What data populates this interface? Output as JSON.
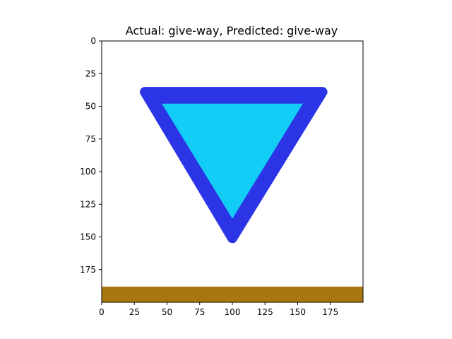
{
  "chart_data": {
    "type": "image",
    "title": "Actual: give-way, Predicted: give-way",
    "xlim": [
      0,
      200
    ],
    "ylim": [
      200,
      0
    ],
    "xticks": [
      0,
      25,
      50,
      75,
      100,
      125,
      150,
      175
    ],
    "yticks": [
      0,
      25,
      50,
      75,
      100,
      125,
      150,
      175
    ],
    "image": {
      "description": "give-way (yield) triangle sign",
      "outer_triangle_color": "#2b35e6",
      "inner_triangle_color": "#12cdf5",
      "background_color": "#ffffff",
      "bottom_band_color": "#a9770f",
      "outer_triangle_data": [
        [
          33,
          39
        ],
        [
          169,
          39
        ],
        [
          100,
          151
        ]
      ],
      "inner_triangle_data": [
        [
          46,
          48
        ],
        [
          154,
          48
        ],
        [
          100,
          136
        ]
      ],
      "bottom_band_data": [
        188,
        200
      ]
    }
  }
}
